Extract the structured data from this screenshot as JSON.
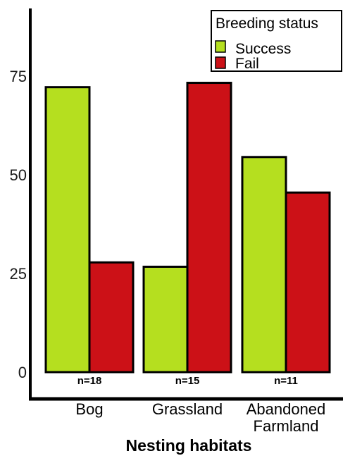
{
  "chart_data": {
    "type": "bar",
    "xlabel": "Nesting habitats",
    "ylabel": "",
    "ylim": [
      0,
      95
    ],
    "yticks": [
      "0",
      "25",
      "50",
      "75"
    ],
    "categories": [
      {
        "lines": [
          "Bog"
        ],
        "n_label": "n=18"
      },
      {
        "lines": [
          "Grassland"
        ],
        "n_label": "n=15"
      },
      {
        "lines": [
          "Abandoned",
          "Farmland"
        ],
        "n_label": "n=11"
      }
    ],
    "series": [
      {
        "name": "Success",
        "color": "#b5df1f",
        "values": [
          72.2,
          26.7,
          54.5
        ]
      },
      {
        "name": "Fail",
        "color": "#cc1117",
        "values": [
          27.8,
          73.3,
          45.5
        ]
      }
    ],
    "legend": {
      "title": "Breeding status",
      "position": "top-right"
    },
    "grid": false
  }
}
